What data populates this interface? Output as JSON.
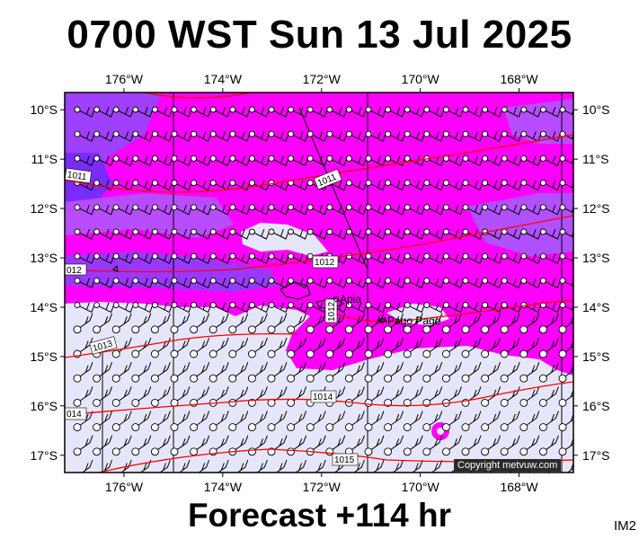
{
  "title": "0700 WST Sun 13 Jul 2025",
  "forecast_label": "Forecast +114 hr",
  "panel_id": "IM2",
  "copyright": "Copyright metvuw.com",
  "colors": {
    "wind_high": "#ff00ff",
    "wind_mid": "#8a3cff",
    "wind_low": "#e6e6fa",
    "isobar": "#ff0000"
  },
  "axes": {
    "lon_labels": [
      "176°W",
      "174°W",
      "172°W",
      "170°W",
      "168°W"
    ],
    "lon_values": [
      -176,
      -174,
      -172,
      -170,
      -168
    ],
    "lat_labels": [
      "10°S",
      "11°S",
      "12°S",
      "13°S",
      "14°S",
      "15°S",
      "16°S",
      "17°S"
    ],
    "lat_values": [
      -10,
      -11,
      -12,
      -13,
      -14,
      -15,
      -16,
      -17
    ],
    "lon_range": [
      -177.2,
      -166.9
    ],
    "lat_range": [
      -17.35,
      -9.65
    ]
  },
  "isobars": [
    {
      "label": "1011",
      "label2": "1011"
    },
    {
      "label": "1012",
      "label2": "012"
    },
    {
      "label": "1013",
      "label2": "1013"
    },
    {
      "label": "1014",
      "label2": "014"
    },
    {
      "label": "1015"
    }
  ],
  "places": [
    {
      "name": "Apia",
      "lon": -171.77,
      "lat": -13.83
    },
    {
      "name": "Pago Pago",
      "lon": -170.7,
      "lat": -14.28
    }
  ]
}
